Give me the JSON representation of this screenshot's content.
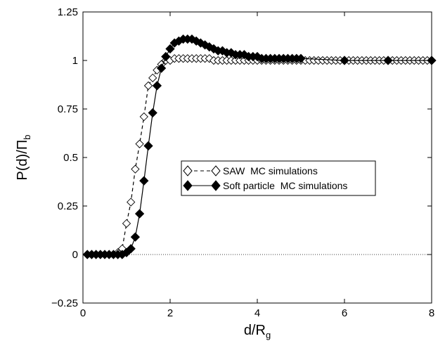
{
  "chart_data": {
    "type": "line",
    "xlabel": "d/R",
    "xlabel_sub": "g",
    "ylabel": "P(d)/Π",
    "ylabel_sub": "b",
    "xlim": [
      0,
      8
    ],
    "ylim": [
      -0.25,
      1.25
    ],
    "x_ticks": [
      0,
      2,
      4,
      6,
      8
    ],
    "y_ticks": [
      -0.25,
      0,
      0.25,
      0.5,
      0.75,
      1,
      1.25
    ],
    "x_tick_labels": [
      "0",
      "2",
      "4",
      "6",
      "8"
    ],
    "y_tick_labels": [
      "−0.25",
      "0",
      "0.25",
      "0.5",
      "0.75",
      "1",
      "1.25"
    ],
    "grid": false,
    "legend_position": "center-right",
    "series": [
      {
        "name": "SAW  MC simulations",
        "marker": "open-diamond",
        "line": "dashed",
        "color": "#000000",
        "x": [
          0.1,
          0.2,
          0.3,
          0.4,
          0.5,
          0.6,
          0.7,
          0.8,
          0.9,
          1.0,
          1.1,
          1.2,
          1.3,
          1.4,
          1.5,
          1.6,
          1.7,
          1.8,
          1.9,
          2.0,
          2.1,
          2.2,
          2.3,
          2.4,
          2.5,
          2.6,
          2.7,
          2.8,
          2.9,
          3.0,
          3.1,
          3.2,
          3.3,
          3.4,
          3.5,
          3.6,
          3.7,
          3.8,
          3.9,
          4.0,
          4.1,
          4.2,
          4.3,
          4.4,
          4.5,
          4.6,
          4.7,
          4.8,
          4.9,
          5.0,
          5.1,
          5.2,
          5.3,
          5.4,
          5.5,
          5.6,
          5.7,
          5.8,
          5.9,
          6.0,
          6.1,
          6.2,
          6.3,
          6.4,
          6.5,
          6.6,
          6.7,
          6.8,
          6.9,
          7.0,
          7.1,
          7.2,
          7.3,
          7.4,
          7.5,
          7.6,
          7.7,
          7.8,
          7.9,
          8.0
        ],
        "y": [
          0,
          0,
          0,
          0,
          0,
          0,
          0,
          0.01,
          0.03,
          0.16,
          0.27,
          0.44,
          0.57,
          0.71,
          0.87,
          0.91,
          0.95,
          0.98,
          1.0,
          1.0,
          1.01,
          1.01,
          1.01,
          1.01,
          1.01,
          1.01,
          1.01,
          1.01,
          1.01,
          1.0,
          1.0,
          1.0,
          1.0,
          1.0,
          1.0,
          1.0,
          1.0,
          1.0,
          1.0,
          1.0,
          1.0,
          1.0,
          1.0,
          1.0,
          1.0,
          1.0,
          1.0,
          1.0,
          1.0,
          1.0,
          1.0,
          1.0,
          1.0,
          1.0,
          1.0,
          1.0,
          1.0,
          1.0,
          1.0,
          1.0,
          1.0,
          1.0,
          1.0,
          1.0,
          1.0,
          1.0,
          1.0,
          1.0,
          1.0,
          1.0,
          1.0,
          1.0,
          1.0,
          1.0,
          1.0,
          1.0,
          1.0,
          1.0,
          1.0,
          1.0
        ]
      },
      {
        "name": "Soft particle  MC simulations",
        "marker": "filled-diamond",
        "line": "solid",
        "color": "#000000",
        "x": [
          0.1,
          0.2,
          0.3,
          0.4,
          0.5,
          0.6,
          0.7,
          0.8,
          0.9,
          1.0,
          1.1,
          1.2,
          1.3,
          1.4,
          1.5,
          1.6,
          1.7,
          1.8,
          1.9,
          2.0,
          2.1,
          2.2,
          2.3,
          2.4,
          2.5,
          2.6,
          2.7,
          2.8,
          2.9,
          3.0,
          3.1,
          3.2,
          3.3,
          3.4,
          3.5,
          3.6,
          3.7,
          3.8,
          3.9,
          4.0,
          4.1,
          4.2,
          4.3,
          4.4,
          4.5,
          4.6,
          4.7,
          4.8,
          4.9,
          5.0,
          6.0,
          7.0,
          8.0
        ],
        "y": [
          0,
          0,
          0,
          0,
          0,
          0,
          0,
          0,
          0,
          0.01,
          0.03,
          0.09,
          0.21,
          0.38,
          0.56,
          0.73,
          0.87,
          0.96,
          1.02,
          1.06,
          1.09,
          1.1,
          1.11,
          1.11,
          1.11,
          1.1,
          1.09,
          1.08,
          1.07,
          1.06,
          1.05,
          1.05,
          1.04,
          1.04,
          1.03,
          1.03,
          1.03,
          1.02,
          1.02,
          1.02,
          1.01,
          1.01,
          1.01,
          1.01,
          1.01,
          1.01,
          1.01,
          1.01,
          1.01,
          1.01,
          1.0,
          1.0,
          1.0
        ]
      }
    ]
  }
}
